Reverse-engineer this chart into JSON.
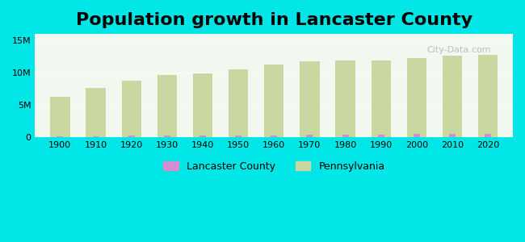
{
  "title": "Population growth in Lancaster County",
  "title_fontsize": 16,
  "title_fontweight": "bold",
  "background_outer": "#00e5e5",
  "background_inner": "#f0f8f0",
  "years": [
    1900,
    1910,
    1920,
    1930,
    1940,
    1950,
    1960,
    1970,
    1980,
    1990,
    2000,
    2010,
    2020
  ],
  "pennsylvania_pop": [
    6302115,
    7665111,
    8720017,
    9631350,
    9900180,
    10498012,
    11319366,
    11800766,
    11863895,
    11881643,
    12281054,
    12702379,
    12800000
  ],
  "lancaster_pop": [
    167789,
    167531,
    228152,
    238537,
    260127,
    278359,
    319693,
    362346,
    362346,
    422822,
    470658,
    519445,
    545724
  ],
  "pa_bar_color": "#c8d8a0",
  "lancaster_bar_color": "#d090d0",
  "ylim": [
    0,
    16000000
  ],
  "yticks": [
    0,
    5000000,
    10000000,
    15000000
  ],
  "ytick_labels": [
    "0",
    "5M",
    "10M",
    "15M"
  ],
  "watermark": "City-Data.com",
  "legend_lancaster_label": "Lancaster County",
  "legend_pa_label": "Pennsylvania"
}
